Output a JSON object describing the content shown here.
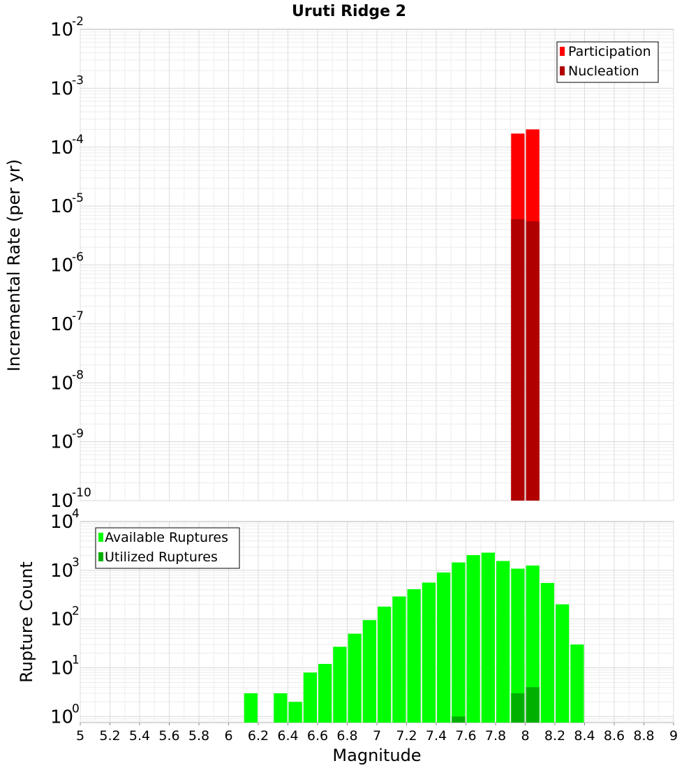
{
  "chart_data": [
    {
      "type": "bar",
      "title": "Uruti Ridge 2",
      "ylabel": "Incremental Rate (per yr)",
      "yscale": "log",
      "ylim": [
        1e-10,
        0.01
      ],
      "yticks": [
        {
          "base": "10",
          "exp": "-10"
        },
        {
          "base": "10",
          "exp": "-9"
        },
        {
          "base": "10",
          "exp": "-8"
        },
        {
          "base": "10",
          "exp": "-7"
        },
        {
          "base": "10",
          "exp": "-6"
        },
        {
          "base": "10",
          "exp": "-5"
        },
        {
          "base": "10",
          "exp": "-4"
        },
        {
          "base": "10",
          "exp": "-3"
        },
        {
          "base": "10",
          "exp": "-2"
        }
      ],
      "legend_position": "top-right",
      "grid": true,
      "series": [
        {
          "name": "Participation",
          "color": "#ff0000",
          "x": [
            7.95,
            8.05
          ],
          "values": [
            0.00017,
            0.0002
          ]
        },
        {
          "name": "Nucleation",
          "color": "#b00000",
          "x": [
            7.95,
            8.05
          ],
          "values": [
            6e-06,
            5.5e-06
          ]
        }
      ]
    },
    {
      "type": "bar",
      "ylabel": "Rupture Count",
      "xlabel": "Magnitude",
      "yscale": "log",
      "ylim": [
        0.75,
        10000
      ],
      "xlim": [
        5,
        9
      ],
      "yticks": [
        {
          "base": "10",
          "exp": "0"
        },
        {
          "base": "10",
          "exp": "1"
        },
        {
          "base": "10",
          "exp": "2"
        },
        {
          "base": "10",
          "exp": "3"
        },
        {
          "base": "10",
          "exp": "4"
        }
      ],
      "xticks": [
        "5",
        "5.2",
        "5.4",
        "5.6",
        "5.8",
        "6",
        "6.2",
        "6.4",
        "6.6",
        "6.8",
        "7",
        "7.2",
        "7.4",
        "7.6",
        "7.8",
        "8",
        "8.2",
        "8.4",
        "8.6",
        "8.8",
        "9"
      ],
      "legend_position": "top-left",
      "grid": true,
      "series": [
        {
          "name": "Available Ruptures",
          "color": "#00ff00",
          "x": [
            6.15,
            6.35,
            6.45,
            6.55,
            6.65,
            6.75,
            6.85,
            6.95,
            7.05,
            7.15,
            7.25,
            7.35,
            7.45,
            7.55,
            7.65,
            7.75,
            7.85,
            7.95,
            8.05,
            8.15,
            8.25,
            8.35
          ],
          "values": [
            3,
            3,
            2,
            8,
            12,
            27,
            50,
            95,
            180,
            290,
            410,
            560,
            900,
            1450,
            2050,
            2300,
            1550,
            1080,
            1250,
            550,
            200,
            30
          ]
        },
        {
          "name": "Utilized Ruptures",
          "color": "#00b000",
          "x": [
            7.55,
            7.95,
            8.05
          ],
          "values": [
            1,
            3,
            4
          ]
        }
      ]
    }
  ]
}
